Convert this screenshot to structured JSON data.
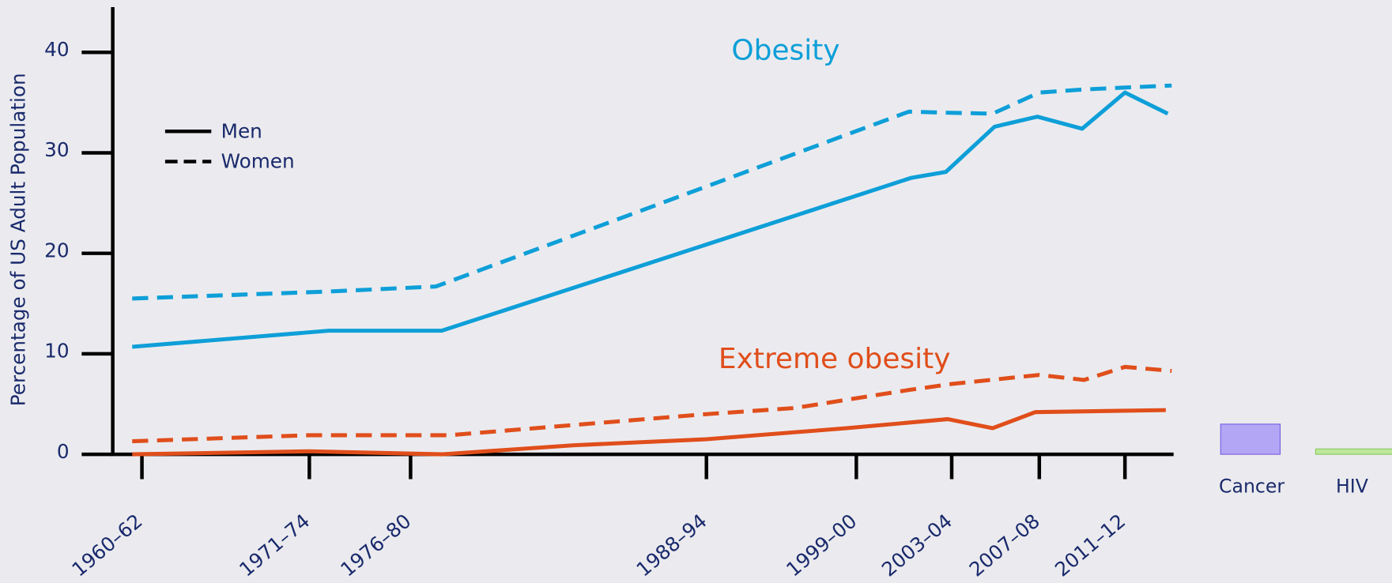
{
  "chart_data": {
    "type": "line",
    "ylabel": "Percentage of US Adult Population",
    "ylim": [
      0,
      44.5
    ],
    "yticks": [
      0,
      10,
      20,
      30,
      40
    ],
    "xlim": [
      1959.5,
      2014
    ],
    "xticks": [
      {
        "value": 1961,
        "label": "1960–62"
      },
      {
        "value": 1969.6,
        "label": "1971–74"
      },
      {
        "value": 1974.8,
        "label": "1976–80"
      },
      {
        "value": 1990.0,
        "label": "1988–94"
      },
      {
        "value": 1997.7,
        "label": "1999–00"
      },
      {
        "value": 2002.6,
        "label": "2003–04"
      },
      {
        "value": 2007.1,
        "label": "2007–08"
      },
      {
        "value": 2011.5,
        "label": "2011–12"
      }
    ],
    "annotations": [
      {
        "text": "Obesity",
        "color": "#0e9fd8"
      },
      {
        "text": "Extreme obesity",
        "color": "#e04e1b"
      }
    ],
    "line_legend": [
      {
        "label": "Men",
        "dashed": false
      },
      {
        "label": "Women",
        "dashed": true
      }
    ],
    "series": [
      {
        "color": "#0e9fd8",
        "dashed": false,
        "x": [
          1960.5,
          1970.6,
          1976.4,
          2000.5,
          2002.3,
          2004.8,
          2007,
          2009.3,
          2011.5,
          2013.7
        ],
        "values": [
          10.7,
          12.3,
          12.3,
          27.5,
          28.1,
          32.6,
          33.6,
          32.4,
          36.0,
          33.9
        ]
      },
      {
        "color": "#0e9fd8",
        "dashed": true,
        "x": [
          1960.5,
          1970.6,
          1976.1,
          2000.4,
          2002.3,
          2004.7,
          2007.1,
          2009.3,
          2011.5,
          2013.9
        ],
        "values": [
          15.5,
          16.2,
          16.7,
          34.1,
          34.0,
          33.9,
          36.0,
          36.3,
          36.5,
          36.7
        ]
      },
      {
        "color": "#e04e1b",
        "dashed": false,
        "x": [
          1960.5,
          1969.6,
          1976.4,
          1983.2,
          1990,
          1997.2,
          2002.4,
          2004.7,
          2006.9,
          2013.6
        ],
        "values": [
          0,
          0.3,
          0,
          0.9,
          1.5,
          2.6,
          3.5,
          2.6,
          4.2,
          4.4
        ]
      },
      {
        "color": "#e04e1b",
        "dashed": true,
        "x": [
          1960.5,
          1969.6,
          1976.8,
          1990,
          1994.5,
          2000.4,
          2002.6,
          2007.1,
          2009.4,
          2011.5,
          2013.9
        ],
        "values": [
          1.3,
          1.9,
          1.9,
          4.0,
          4.6,
          6.4,
          7.0,
          7.9,
          7.4,
          8.7,
          8.3
        ]
      }
    ],
    "side_legend": [
      "Cancer",
      "HIV"
    ]
  }
}
